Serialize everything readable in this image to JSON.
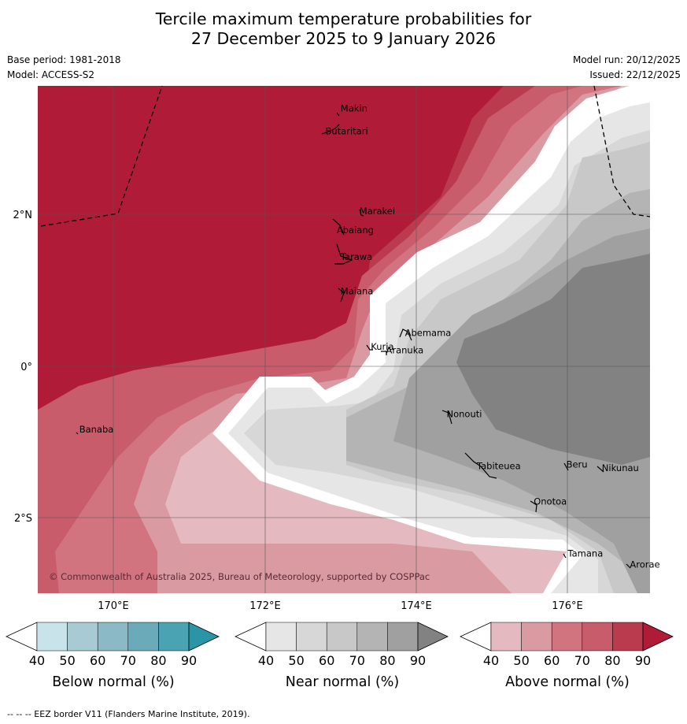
{
  "title": {
    "line1": "Tercile maximum temperature probabilities for",
    "line2": "27 December 2025 to 9 January 2026"
  },
  "meta": {
    "base_period": "Base period: 1981-2018",
    "model": "Model: ACCESS-S2",
    "model_run": "Model run: 20/12/2025",
    "issued": "Issued: 22/12/2025"
  },
  "map": {
    "lon_ticks": [
      "170°E",
      "172°E",
      "174°E",
      "176°E"
    ],
    "lat_ticks": [
      "2°N",
      "0°",
      "2°S"
    ],
    "copyright": "© Commonwealth of Australia 2025, Bureau of Meteorology, supported by COSPPac",
    "places": [
      {
        "name": "Makin",
        "lon": 173.0,
        "lat": 3.35
      },
      {
        "name": "Butaritari",
        "lon": 172.8,
        "lat": 3.05
      },
      {
        "name": "Marakei",
        "lon": 173.25,
        "lat": 2.0
      },
      {
        "name": "Abaiang",
        "lon": 172.95,
        "lat": 1.75
      },
      {
        "name": "Tarawa",
        "lon": 173.0,
        "lat": 1.4
      },
      {
        "name": "Maiana",
        "lon": 173.0,
        "lat": 0.95
      },
      {
        "name": "Abemama",
        "lon": 173.85,
        "lat": 0.4
      },
      {
        "name": "Kuria",
        "lon": 173.4,
        "lat": 0.22
      },
      {
        "name": "Aranuka",
        "lon": 173.6,
        "lat": 0.17
      },
      {
        "name": "Banaba",
        "lon": 169.55,
        "lat": -0.87
      },
      {
        "name": "Nonouti",
        "lon": 174.4,
        "lat": -0.67
      },
      {
        "name": "Tabiteuea",
        "lon": 174.8,
        "lat": -1.35
      },
      {
        "name": "Beru",
        "lon": 175.98,
        "lat": -1.33
      },
      {
        "name": "Nikunau",
        "lon": 176.45,
        "lat": -1.38
      },
      {
        "name": "Onotoa",
        "lon": 175.55,
        "lat": -1.82
      },
      {
        "name": "Tamana",
        "lon": 176.0,
        "lat": -2.5
      },
      {
        "name": "Arorae",
        "lon": 176.82,
        "lat": -2.65
      }
    ]
  },
  "colorbars": [
    {
      "label": "Below normal (%)",
      "ticks": [
        "40",
        "50",
        "60",
        "70",
        "80",
        "90"
      ],
      "colors": [
        "#ffffff",
        "#c9e3ea",
        "#a8cbd3",
        "#8bbac6",
        "#6babb9",
        "#4aa3b2",
        "#2b95a8"
      ]
    },
    {
      "label": "Near normal (%)",
      "ticks": [
        "40",
        "50",
        "60",
        "70",
        "80",
        "90"
      ],
      "colors": [
        "#ffffff",
        "#e6e6e6",
        "#d7d7d7",
        "#c8c8c8",
        "#b4b4b4",
        "#a0a0a0",
        "#828282"
      ]
    },
    {
      "label": "Above normal (%)",
      "ticks": [
        "40",
        "50",
        "60",
        "70",
        "80",
        "90"
      ],
      "colors": [
        "#ffffff",
        "#e4b9c0",
        "#da9aa2",
        "#d27480",
        "#c85c6b",
        "#ba3a4e",
        "#b01c37"
      ]
    }
  ],
  "footer": "-- -- -- EEZ border V11 (Flanders Marine Institute, 2019)."
}
